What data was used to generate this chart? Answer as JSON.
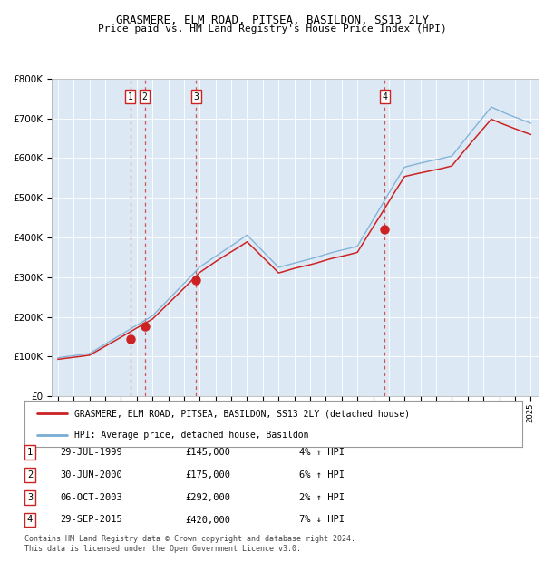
{
  "title": "GRASMERE, ELM ROAD, PITSEA, BASILDON, SS13 2LY",
  "subtitle": "Price paid vs. HM Land Registry's House Price Index (HPI)",
  "background_color": "#dce9f5",
  "hpi_color": "#7aadd4",
  "price_color": "#cc2222",
  "dot_color": "#cc2222",
  "vline_color": "#cc2222",
  "ylim": [
    0,
    800000
  ],
  "yticks": [
    0,
    100000,
    200000,
    300000,
    400000,
    500000,
    600000,
    700000,
    800000
  ],
  "transactions": [
    {
      "label": "1",
      "x": 1999.58,
      "price": 145000
    },
    {
      "label": "2",
      "x": 2000.5,
      "price": 175000
    },
    {
      "label": "3",
      "x": 2003.76,
      "price": 292000
    },
    {
      "label": "4",
      "x": 2015.74,
      "price": 420000
    }
  ],
  "legend_entries": [
    "GRASMERE, ELM ROAD, PITSEA, BASILDON, SS13 2LY (detached house)",
    "HPI: Average price, detached house, Basildon"
  ],
  "table_rows": [
    {
      "num": "1",
      "date": "29-JUL-1999",
      "price": "£145,000",
      "hpi": "4% ↑ HPI"
    },
    {
      "num": "2",
      "date": "30-JUN-2000",
      "price": "£175,000",
      "hpi": "6% ↑ HPI"
    },
    {
      "num": "3",
      "date": "06-OCT-2003",
      "price": "£292,000",
      "hpi": "2% ↑ HPI"
    },
    {
      "num": "4",
      "date": "29-SEP-2015",
      "price": "£420,000",
      "hpi": "7% ↓ HPI"
    }
  ],
  "footer": "Contains HM Land Registry data © Crown copyright and database right 2024.\nThis data is licensed under the Open Government Licence v3.0."
}
